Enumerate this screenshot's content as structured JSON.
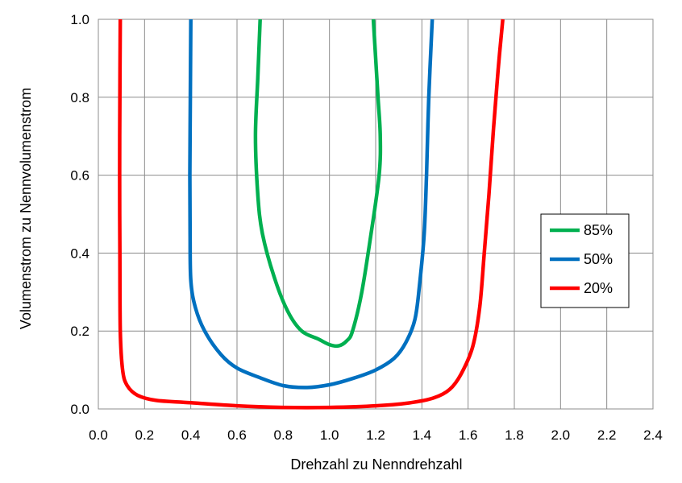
{
  "chart_data": {
    "type": "line",
    "title": "",
    "xlabel": "Drehzahl zu Nenndrehzahl",
    "ylabel": "Volumenstrom zu Nennvolumenstrom",
    "xlim": [
      0.0,
      2.4
    ],
    "ylim": [
      0.0,
      1.0
    ],
    "x_ticks": [
      "0.0",
      "0.2",
      "0.4",
      "0.6",
      "0.8",
      "1.0",
      "1.2",
      "1.4",
      "1.6",
      "1.8",
      "2.0",
      "2.2",
      "2.4"
    ],
    "y_ticks": [
      "0.0",
      "0.2",
      "0.4",
      "0.6",
      "0.8",
      "1.0"
    ],
    "x_tick_values": [
      0.0,
      0.2,
      0.4,
      0.6,
      0.8,
      1.0,
      1.2,
      1.4,
      1.6,
      1.8,
      2.0,
      2.2,
      2.4
    ],
    "y_tick_values": [
      0.0,
      0.2,
      0.4,
      0.6,
      0.8,
      1.0
    ],
    "grid": true,
    "legend_position": "right",
    "series": [
      {
        "name": "85%",
        "color": "#00b050",
        "points": [
          [
            0.7,
            1.0
          ],
          [
            0.69,
            0.85
          ],
          [
            0.68,
            0.7
          ],
          [
            0.69,
            0.55
          ],
          [
            0.71,
            0.45
          ],
          [
            0.76,
            0.34
          ],
          [
            0.82,
            0.25
          ],
          [
            0.88,
            0.2
          ],
          [
            0.95,
            0.18
          ],
          [
            1.0,
            0.165
          ],
          [
            1.04,
            0.162
          ],
          [
            1.075,
            0.175
          ],
          [
            1.1,
            0.2
          ],
          [
            1.14,
            0.3
          ],
          [
            1.18,
            0.45
          ],
          [
            1.215,
            0.6
          ],
          [
            1.22,
            0.7
          ],
          [
            1.21,
            0.8
          ],
          [
            1.2,
            0.9
          ],
          [
            1.19,
            1.0
          ]
        ]
      },
      {
        "name": "50%",
        "color": "#0070c0",
        "points": [
          [
            0.4,
            1.0
          ],
          [
            0.398,
            0.8
          ],
          [
            0.396,
            0.6
          ],
          [
            0.397,
            0.45
          ],
          [
            0.4,
            0.33
          ],
          [
            0.42,
            0.26
          ],
          [
            0.46,
            0.2
          ],
          [
            0.53,
            0.14
          ],
          [
            0.6,
            0.105
          ],
          [
            0.7,
            0.08
          ],
          [
            0.8,
            0.06
          ],
          [
            0.9,
            0.055
          ],
          [
            1.0,
            0.062
          ],
          [
            1.1,
            0.078
          ],
          [
            1.2,
            0.1
          ],
          [
            1.28,
            0.13
          ],
          [
            1.33,
            0.17
          ],
          [
            1.37,
            0.23
          ],
          [
            1.39,
            0.32
          ],
          [
            1.41,
            0.45
          ],
          [
            1.42,
            0.6
          ],
          [
            1.43,
            0.8
          ],
          [
            1.445,
            1.0
          ]
        ]
      },
      {
        "name": "20%",
        "color": "#ff0000",
        "points": [
          [
            0.095,
            1.0
          ],
          [
            0.093,
            0.8
          ],
          [
            0.092,
            0.6
          ],
          [
            0.093,
            0.4
          ],
          [
            0.095,
            0.2
          ],
          [
            0.105,
            0.1
          ],
          [
            0.125,
            0.06
          ],
          [
            0.17,
            0.035
          ],
          [
            0.25,
            0.022
          ],
          [
            0.4,
            0.016
          ],
          [
            0.6,
            0.008
          ],
          [
            0.8,
            0.004
          ],
          [
            1.0,
            0.004
          ],
          [
            1.2,
            0.008
          ],
          [
            1.35,
            0.016
          ],
          [
            1.45,
            0.028
          ],
          [
            1.52,
            0.05
          ],
          [
            1.57,
            0.09
          ],
          [
            1.62,
            0.16
          ],
          [
            1.65,
            0.26
          ],
          [
            1.67,
            0.4
          ],
          [
            1.69,
            0.55
          ],
          [
            1.71,
            0.72
          ],
          [
            1.73,
            0.87
          ],
          [
            1.75,
            1.0
          ]
        ]
      }
    ]
  }
}
